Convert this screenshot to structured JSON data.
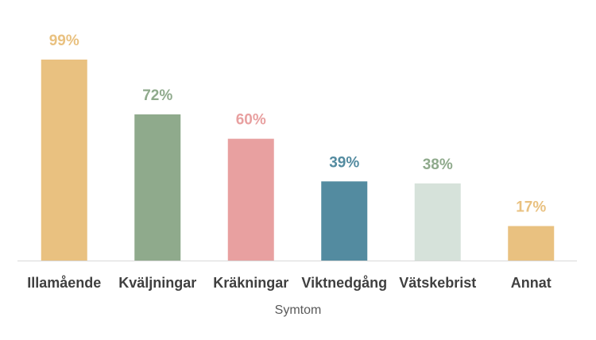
{
  "chart_data": {
    "type": "bar",
    "x_label": "Symtom",
    "categories": [
      "Illamående",
      "Kväljningar",
      "Kräkningar",
      "Viktnedgång",
      "Vätskebrist",
      "Annat"
    ],
    "values": [
      99,
      72,
      60,
      39,
      38,
      17
    ],
    "value_labels": [
      "99%",
      "72%",
      "60%",
      "39%",
      "38%",
      "17%"
    ],
    "colors": [
      "#e9c180",
      "#8faa8c",
      "#e8a0a0",
      "#538ba0",
      "#d6e2da",
      "#e9c180"
    ],
    "label_colors": [
      "#e9c180",
      "#8faa8c",
      "#e8a0a0",
      "#538ba0",
      "#8faa8c",
      "#e9c180"
    ]
  }
}
